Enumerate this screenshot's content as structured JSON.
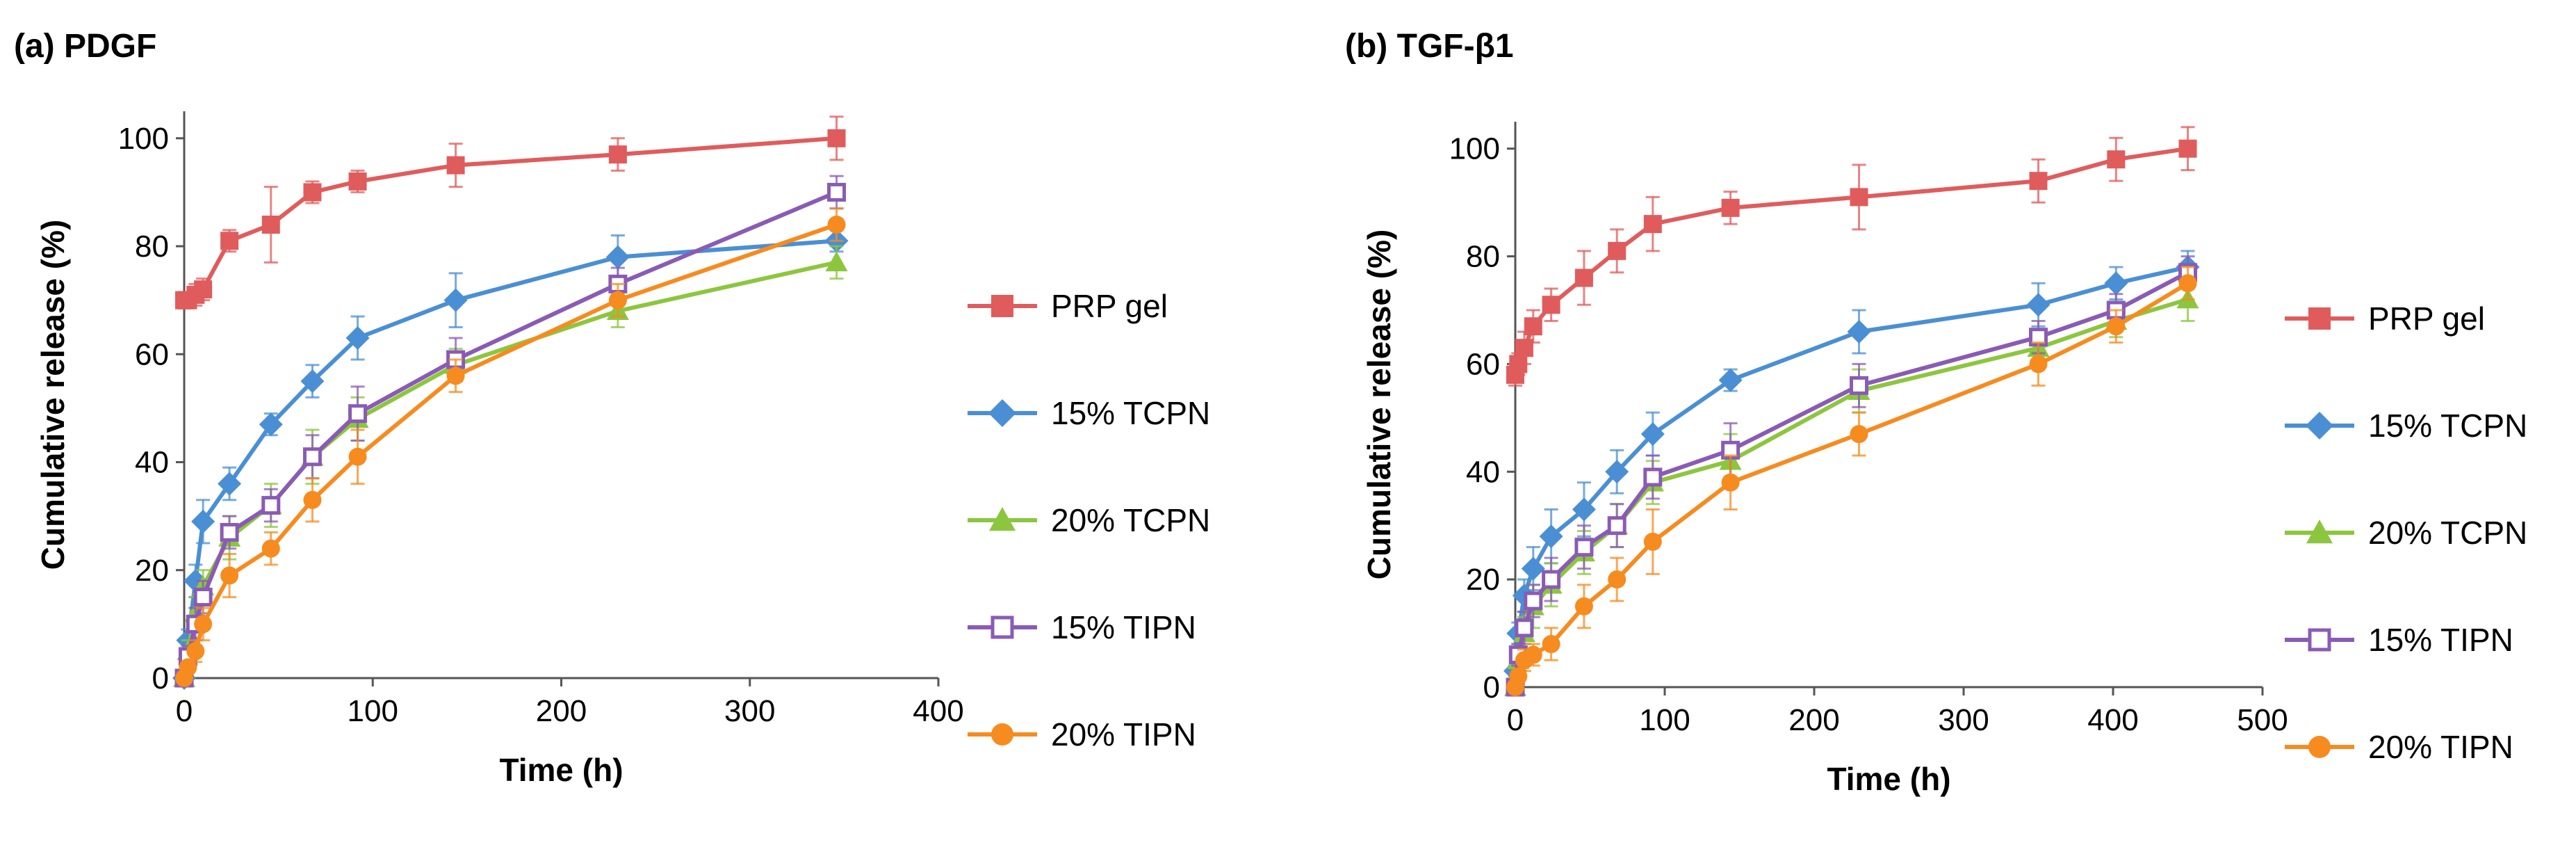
{
  "chart_data": [
    {
      "type": "line",
      "title": "(a) PDGF",
      "xlabel": "Time (h)",
      "ylabel": "Cumulative release (%)",
      "xlim": [
        0,
        400
      ],
      "ylim": [
        0,
        105
      ],
      "xticks": [
        0,
        100,
        200,
        300,
        400
      ],
      "yticks": [
        0,
        20,
        40,
        60,
        80,
        100
      ],
      "legend_position": "right",
      "series": [
        {
          "name": "PRP gel",
          "color": "#e05c5c",
          "marker": "square-filled",
          "x": [
            0,
            2,
            6,
            10,
            24,
            46,
            68,
            92,
            144,
            230,
            346
          ],
          "y": [
            70,
            70,
            71,
            72,
            81,
            84,
            90,
            92,
            95,
            97,
            100
          ],
          "err": [
            1.5,
            1.5,
            2,
            2,
            2,
            7,
            2,
            2,
            4,
            3,
            4
          ]
        },
        {
          "name": "15% TCPN",
          "color": "#4a8fd4",
          "marker": "diamond-filled",
          "x": [
            0,
            2,
            6,
            10,
            24,
            46,
            68,
            92,
            144,
            230,
            346
          ],
          "y": [
            0,
            7,
            18,
            29,
            36,
            47,
            55,
            63,
            70,
            78,
            81
          ],
          "err": [
            1,
            2,
            3,
            4,
            3,
            2,
            3,
            4,
            5,
            4,
            2
          ]
        },
        {
          "name": "20% TCPN",
          "color": "#8cc63f",
          "marker": "triangle-filled",
          "x": [
            0,
            2,
            6,
            10,
            24,
            46,
            68,
            92,
            144,
            230,
            346
          ],
          "y": [
            0,
            5,
            12,
            17,
            26,
            32,
            41,
            48,
            58,
            68,
            77
          ],
          "err": [
            1,
            2,
            3,
            3,
            4,
            4,
            5,
            4,
            3,
            3,
            3
          ]
        },
        {
          "name": "15% TIPN",
          "color": "#8a5bb5",
          "marker": "square-open",
          "x": [
            0,
            2,
            6,
            10,
            24,
            46,
            68,
            92,
            144,
            230,
            346
          ],
          "y": [
            0,
            4,
            10,
            15,
            27,
            32,
            41,
            49,
            59,
            73,
            90
          ],
          "err": [
            1,
            2,
            3,
            3,
            3,
            3,
            4,
            5,
            4,
            3,
            3
          ]
        },
        {
          "name": "20% TIPN",
          "color": "#f68b1f",
          "marker": "circle-filled",
          "x": [
            0,
            2,
            6,
            10,
            24,
            46,
            68,
            92,
            144,
            230,
            346
          ],
          "y": [
            0,
            2,
            5,
            10,
            19,
            24,
            33,
            41,
            56,
            70,
            84
          ],
          "err": [
            1,
            1,
            2,
            3,
            4,
            3,
            4,
            5,
            3,
            3,
            3
          ]
        }
      ]
    },
    {
      "type": "line",
      "title": "(b) TGF-β1",
      "xlabel": "Time (h)",
      "ylabel": "Cumulative release (%)",
      "xlim": [
        0,
        500
      ],
      "ylim": [
        0,
        105
      ],
      "xticks": [
        0,
        100,
        200,
        300,
        400,
        500
      ],
      "yticks": [
        0,
        20,
        40,
        60,
        80,
        100
      ],
      "legend_position": "right",
      "series": [
        {
          "name": "PRP gel",
          "color": "#e05c5c",
          "marker": "square-filled",
          "x": [
            0,
            2,
            6,
            12,
            24,
            46,
            68,
            92,
            144,
            230,
            350,
            402,
            450
          ],
          "y": [
            58,
            60,
            63,
            67,
            71,
            76,
            81,
            86,
            89,
            91,
            94,
            98,
            100
          ],
          "err": [
            2,
            2,
            3,
            3,
            3,
            5,
            4,
            5,
            3,
            6,
            4,
            4,
            4
          ]
        },
        {
          "name": "15% TCPN",
          "color": "#4a8fd4",
          "marker": "diamond-filled",
          "x": [
            0,
            2,
            6,
            12,
            24,
            46,
            68,
            92,
            144,
            230,
            350,
            402,
            450
          ],
          "y": [
            3,
            10,
            17,
            22,
            28,
            33,
            40,
            47,
            57,
            66,
            71,
            75,
            78
          ],
          "err": [
            1,
            2,
            3,
            4,
            5,
            5,
            4,
            4,
            2,
            4,
            4,
            3,
            3
          ]
        },
        {
          "name": "20% TCPN",
          "color": "#8cc63f",
          "marker": "triangle-filled",
          "x": [
            0,
            2,
            6,
            12,
            24,
            46,
            68,
            92,
            144,
            230,
            350,
            402,
            450
          ],
          "y": [
            0,
            5,
            10,
            15,
            19,
            25,
            30,
            38,
            42,
            55,
            63,
            68,
            72
          ],
          "err": [
            1,
            2,
            3,
            4,
            4,
            4,
            4,
            4,
            5,
            4,
            3,
            3,
            4
          ]
        },
        {
          "name": "15% TIPN",
          "color": "#8a5bb5",
          "marker": "square-open",
          "x": [
            0,
            2,
            6,
            12,
            24,
            46,
            68,
            92,
            144,
            230,
            350,
            402,
            450
          ],
          "y": [
            0,
            6,
            11,
            16,
            20,
            26,
            30,
            39,
            44,
            56,
            65,
            70,
            77
          ],
          "err": [
            1,
            2,
            3,
            3,
            4,
            4,
            4,
            4,
            5,
            4,
            3,
            3,
            3
          ]
        },
        {
          "name": "20% TIPN",
          "color": "#f68b1f",
          "marker": "circle-filled",
          "x": [
            0,
            2,
            6,
            12,
            24,
            46,
            68,
            92,
            144,
            230,
            350,
            402,
            450
          ],
          "y": [
            0,
            2,
            5,
            6,
            8,
            15,
            20,
            27,
            38,
            47,
            60,
            67,
            75
          ],
          "err": [
            1,
            1,
            2,
            2,
            3,
            4,
            4,
            6,
            5,
            4,
            4,
            3,
            3
          ]
        }
      ]
    }
  ]
}
